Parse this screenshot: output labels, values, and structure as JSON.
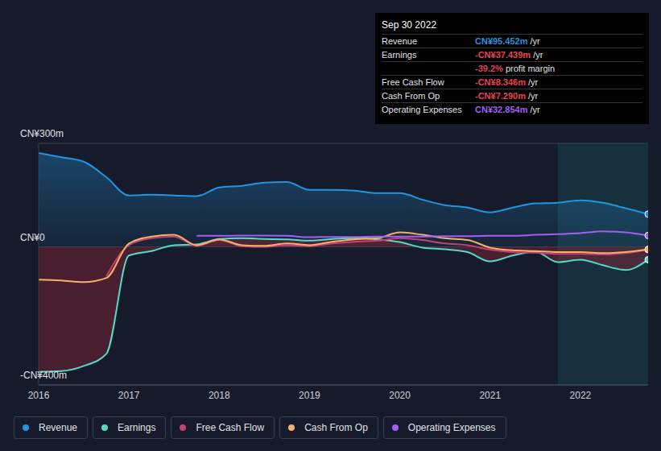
{
  "chart_data": {
    "type": "area",
    "x": [
      2016,
      2016.25,
      2016.5,
      2016.75,
      2017,
      2017.25,
      2017.5,
      2017.75,
      2018,
      2018.25,
      2018.5,
      2018.75,
      2019,
      2019.25,
      2019.5,
      2019.75,
      2020,
      2020.25,
      2020.5,
      2020.75,
      2021,
      2021.25,
      2021.5,
      2021.75,
      2022,
      2022.25,
      2022.5,
      2022.75
    ],
    "xlim": [
      2016,
      2022.75
    ],
    "xticks": [
      2016,
      2017,
      2018,
      2019,
      2020,
      2021,
      2022
    ],
    "ylim": [
      -400,
      300
    ],
    "yticks": [
      {
        "value": 300,
        "label": "CN¥300m"
      },
      {
        "value": 0,
        "label": "CN¥0"
      },
      {
        "value": -400,
        "label": "-CN¥400m"
      }
    ],
    "grid": true,
    "highlight": {
      "from": 2021.75,
      "to": 2022.75
    },
    "series": [
      {
        "name": "Revenue",
        "color": "#2394df",
        "type": "area",
        "values": [
          272,
          260,
          247,
          202,
          149,
          151,
          149,
          147,
          172,
          177,
          186,
          188,
          165,
          165,
          163,
          156,
          156,
          137,
          121,
          114,
          100,
          114,
          126,
          128,
          135,
          128,
          112,
          95
        ]
      },
      {
        "name": "Earnings",
        "color": "#58d8c6",
        "type": "area",
        "values": [
          -362,
          -360,
          -345,
          -310,
          -25,
          -12,
          5,
          7,
          23,
          25,
          23,
          22,
          18,
          23,
          25,
          22,
          14,
          -2,
          -7,
          -15,
          -42,
          -25,
          -14,
          -44,
          -37,
          -53,
          -67,
          -37
        ]
      },
      {
        "name": "Free Cash Flow",
        "color": "#c7406e",
        "type": "line",
        "values": [
          null,
          null,
          null,
          -85,
          5,
          25,
          30,
          3,
          20,
          2,
          0,
          5,
          2,
          10,
          15,
          18,
          25,
          20,
          10,
          5,
          -8,
          -15,
          -17,
          -20,
          -20,
          -22,
          -18,
          -8
        ]
      },
      {
        "name": "Cash From Op",
        "color": "#f2b26b",
        "type": "line",
        "values": [
          -95,
          -97,
          -102,
          -90,
          10,
          30,
          35,
          5,
          22,
          5,
          3,
          10,
          5,
          15,
          22,
          25,
          42,
          35,
          25,
          20,
          -2,
          -10,
          -12,
          -15,
          -15,
          -18,
          -15,
          -7
        ]
      },
      {
        "name": "Operating Expenses",
        "color": "#a45ef0",
        "type": "line",
        "values": [
          null,
          null,
          null,
          null,
          null,
          null,
          null,
          32,
          32,
          33,
          33,
          32,
          28,
          29,
          29,
          30,
          30,
          30,
          31,
          31,
          32,
          32,
          35,
          37,
          40,
          45,
          42,
          33
        ]
      }
    ],
    "annotations": {
      "date": "Sep 30 2022",
      "rows": [
        {
          "label": "Revenue",
          "value": "CN¥95.452m",
          "unit": "/yr",
          "color": "#2394df"
        },
        {
          "label": "Earnings",
          "value": "-CN¥37.439m",
          "unit": "/yr",
          "color": "#e8434f"
        },
        {
          "label": "",
          "value": "-39.2%",
          "unit": "profit margin",
          "color": "#e8434f"
        },
        {
          "label": "Free Cash Flow",
          "value": "-CN¥8.346m",
          "unit": "/yr",
          "color": "#e8434f"
        },
        {
          "label": "Cash From Op",
          "value": "-CN¥7.290m",
          "unit": "/yr",
          "color": "#e8434f"
        },
        {
          "label": "Operating Expenses",
          "value": "CN¥32.854m",
          "unit": "/yr",
          "color": "#a45ef0"
        }
      ]
    }
  }
}
